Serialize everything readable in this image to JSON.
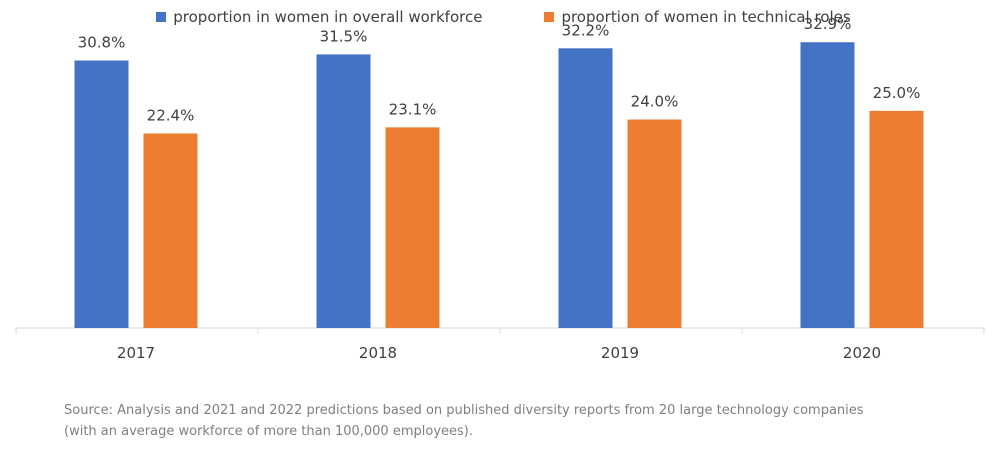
{
  "chart_data": {
    "type": "bar",
    "categories": [
      "2017",
      "2018",
      "2019",
      "2020"
    ],
    "series": [
      {
        "name": "proportion in women in overall workforce",
        "color": "#4472C4",
        "values": [
          30.8,
          31.5,
          32.2,
          32.9
        ],
        "labels": [
          "30.8%",
          "31.5%",
          "32.2%",
          "32.9%"
        ]
      },
      {
        "name": "proportion of women in technical roles",
        "color": "#ED7D31",
        "values": [
          22.4,
          23.1,
          24.0,
          25.0
        ],
        "labels": [
          "22.4%",
          "23.1%",
          "24.0%",
          "25.0%"
        ]
      }
    ],
    "ylim": [
      0,
      35
    ],
    "xlabel": "",
    "ylabel": "",
    "grid": false,
    "legend": "top-center"
  },
  "source_note": {
    "line1": "Source: Analysis and 2021 and 2022 predictions based on published diversity reports from 20 large technology companies",
    "line2": "(with an average workforce of more than 100,000 employees)."
  }
}
